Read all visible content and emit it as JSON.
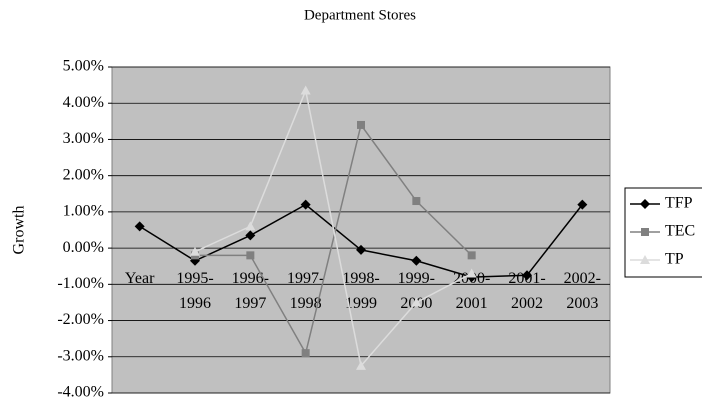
{
  "chart_data": {
    "type": "line",
    "title": "Department Stores",
    "y_label": "Growth",
    "categories": [
      "Year",
      "1995-1996",
      "1996-1997",
      "1997-1998",
      "1998-1999",
      "1999-2000",
      "2000-2001",
      "2001-2002",
      "2002-2003"
    ],
    "series": [
      {
        "name": "TFP",
        "color": "#000000",
        "marker": "diamond",
        "values": [
          0.6,
          -0.35,
          0.35,
          1.2,
          -0.05,
          -0.35,
          -0.8,
          -0.75,
          1.2
        ]
      },
      {
        "name": "TEC",
        "color": "#808080",
        "marker": "square",
        "values": [
          null,
          -0.2,
          -0.2,
          -2.9,
          3.4,
          1.3,
          -0.2,
          null,
          null
        ]
      },
      {
        "name": "TP",
        "color": "#dcdcdc",
        "marker": "triangle",
        "values": [
          null,
          -0.1,
          0.6,
          4.35,
          -3.25,
          -1.5,
          -0.7,
          null,
          null
        ]
      }
    ],
    "ylim": [
      -4,
      5
    ],
    "yticks": [
      {
        "value": 5,
        "label": "5.00%"
      },
      {
        "value": 4,
        "label": "4.00%"
      },
      {
        "value": 3,
        "label": "3.00%"
      },
      {
        "value": 2,
        "label": "2.00%"
      },
      {
        "value": 1,
        "label": "1.00%"
      },
      {
        "value": 0,
        "label": "0.00%"
      },
      {
        "value": -1,
        "label": "-1.00%"
      },
      {
        "value": -2,
        "label": "-2.00%"
      },
      {
        "value": -3,
        "label": "-3.00%"
      },
      {
        "value": -4,
        "label": "-4.00%"
      }
    ],
    "grid": true,
    "legend": "right"
  }
}
